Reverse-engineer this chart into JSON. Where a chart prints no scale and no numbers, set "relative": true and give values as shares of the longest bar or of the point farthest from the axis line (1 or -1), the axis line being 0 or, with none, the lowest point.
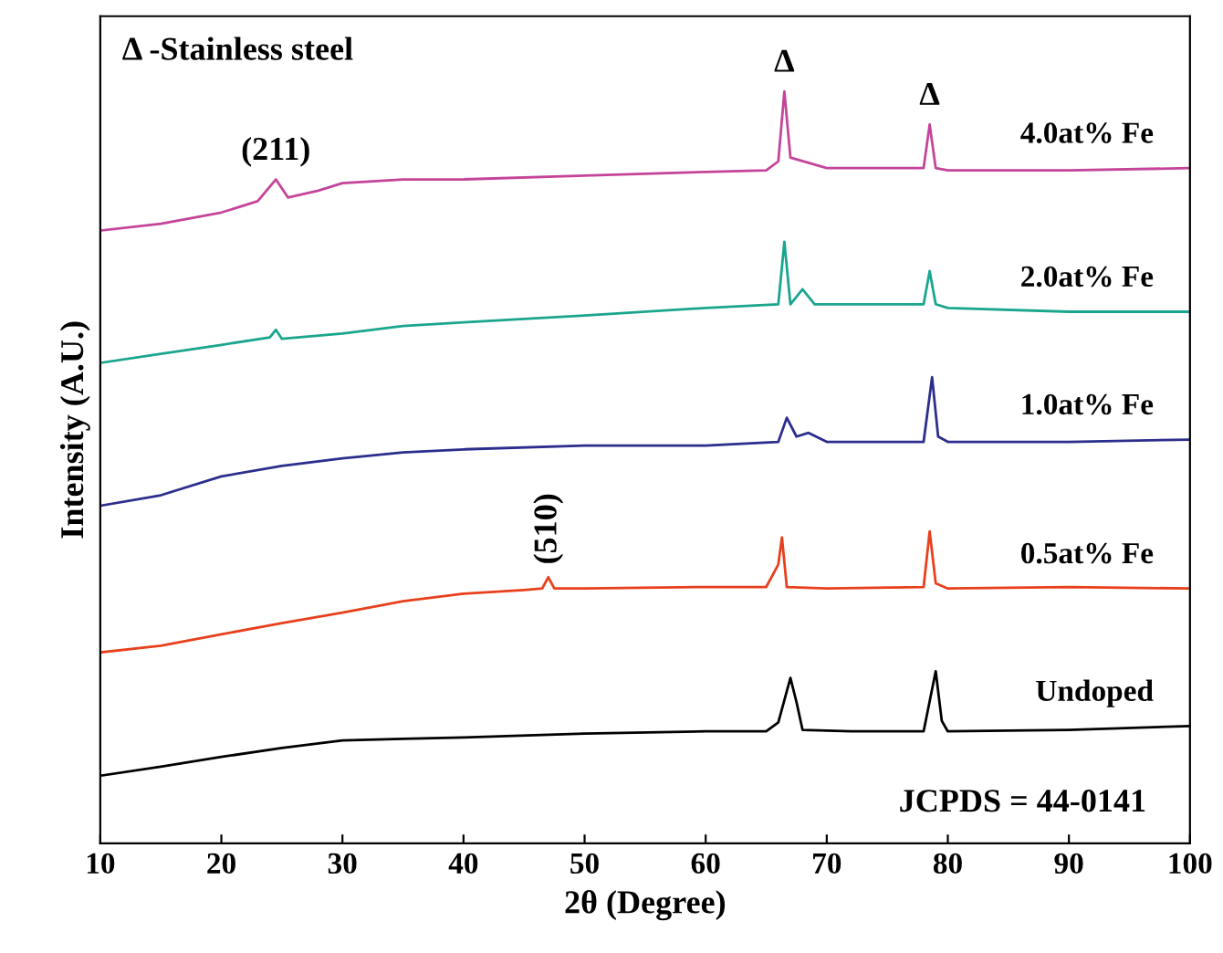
{
  "chart_data": {
    "type": "line",
    "xlabel": "2θ (Degree)",
    "ylabel": "Intensity (A.U.)",
    "relative": true,
    "xlim": [
      10,
      100
    ],
    "xticks": [
      10,
      20,
      30,
      40,
      50,
      60,
      70,
      80,
      90,
      100
    ],
    "grid": false,
    "series": [
      {
        "name": "Undoped",
        "color": "#000000",
        "x": [
          10,
          15,
          20,
          25,
          30,
          35,
          40,
          50,
          60,
          65,
          66,
          67,
          67.5,
          68,
          72,
          78,
          79,
          79.5,
          80,
          90,
          100
        ],
        "values": [
          0.09,
          0.102,
          0.115,
          0.127,
          0.137,
          0.139,
          0.141,
          0.146,
          0.149,
          0.149,
          0.161,
          0.22,
          0.188,
          0.151,
          0.149,
          0.149,
          0.229,
          0.163,
          0.149,
          0.151,
          0.156
        ]
      },
      {
        "name": "0.5at% Fe",
        "color": "#e8401c",
        "x": [
          10,
          15,
          20,
          25,
          30,
          35,
          40,
          45,
          46.5,
          47,
          47.5,
          50,
          60,
          65,
          66,
          66.3,
          66.7,
          70,
          78,
          78.5,
          79,
          80,
          90,
          100
        ],
        "values": [
          0.254,
          0.263,
          0.278,
          0.293,
          0.307,
          0.322,
          0.332,
          0.337,
          0.339,
          0.354,
          0.339,
          0.339,
          0.341,
          0.341,
          0.371,
          0.407,
          0.341,
          0.339,
          0.341,
          0.415,
          0.346,
          0.339,
          0.341,
          0.339
        ]
      },
      {
        "name": "1.0at% Fe",
        "color": "#2b2e8c",
        "x": [
          10,
          15,
          20,
          25,
          30,
          35,
          40,
          50,
          60,
          66,
          66.7,
          67.5,
          68.5,
          70,
          78,
          78.7,
          79.2,
          80,
          90,
          100
        ],
        "values": [
          0.449,
          0.463,
          0.488,
          0.502,
          0.512,
          0.52,
          0.524,
          0.529,
          0.529,
          0.534,
          0.566,
          0.541,
          0.546,
          0.534,
          0.534,
          0.62,
          0.541,
          0.534,
          0.534,
          0.537
        ]
      },
      {
        "name": "2.0at% Fe",
        "color": "#1aa58f",
        "x": [
          10,
          15,
          20,
          24,
          24.5,
          25,
          30,
          35,
          40,
          50,
          60,
          66,
          66.5,
          67,
          68,
          69,
          78,
          78.5,
          79,
          80,
          90,
          100
        ],
        "values": [
          0.639,
          0.651,
          0.663,
          0.673,
          0.683,
          0.671,
          0.678,
          0.688,
          0.693,
          0.702,
          0.712,
          0.717,
          0.8,
          0.717,
          0.737,
          0.717,
          0.717,
          0.761,
          0.717,
          0.712,
          0.707,
          0.707
        ]
      },
      {
        "name": "4.0at% Fe",
        "color": "#c4449a",
        "x": [
          10,
          15,
          20,
          23,
          24.5,
          25.5,
          28,
          30,
          35,
          40,
          50,
          60,
          65,
          66,
          66.5,
          67,
          70,
          78,
          78.5,
          79,
          80,
          90,
          100
        ],
        "values": [
          0.815,
          0.824,
          0.839,
          0.854,
          0.883,
          0.859,
          0.868,
          0.878,
          0.883,
          0.883,
          0.888,
          0.893,
          0.895,
          0.907,
          1.0,
          0.912,
          0.898,
          0.898,
          0.956,
          0.898,
          0.895,
          0.895,
          0.898
        ]
      }
    ],
    "annotations": [
      "Δ -Stainless steel",
      "JCPDS = 44-0141",
      {
        "text": "(211)",
        "x": 24.5,
        "y": 0.883
      },
      {
        "text": "(510)",
        "x": 47,
        "y": 0.354
      },
      {
        "text": "Δ",
        "x": 66.5,
        "y": 1.0
      },
      {
        "text": "Δ",
        "x": 78.5,
        "y": 0.956
      }
    ]
  }
}
